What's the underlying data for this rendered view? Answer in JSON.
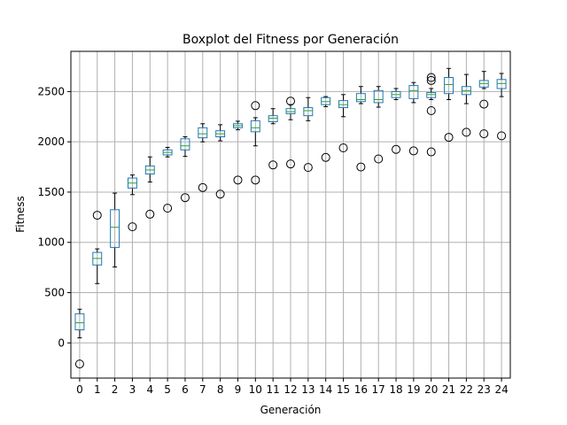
{
  "chart_data": {
    "type": "boxplot",
    "title": "Boxplot del Fitness por Generación",
    "xlabel": "Generación",
    "ylabel": "Fitness",
    "ylim": [
      -350,
      2900
    ],
    "yticks": [
      0,
      500,
      1000,
      1500,
      2000,
      2500
    ],
    "grid": true,
    "colors": {
      "box": "#1f77b4",
      "median": "#2ca02c",
      "whisker": "#000000",
      "grid": "#b0b0b0"
    },
    "categories": [
      "0",
      "1",
      "2",
      "3",
      "4",
      "5",
      "6",
      "7",
      "8",
      "9",
      "10",
      "11",
      "12",
      "13",
      "14",
      "15",
      "16",
      "17",
      "18",
      "19",
      "20",
      "21",
      "22",
      "23",
      "24"
    ],
    "boxes": [
      {
        "label": "0",
        "whislo": 50,
        "q1": 130,
        "med": 200,
        "q3": 290,
        "whishi": 335,
        "fliers": [
          -210
        ]
      },
      {
        "label": "1",
        "whislo": 590,
        "q1": 775,
        "med": 840,
        "q3": 900,
        "whishi": 935,
        "fliers": [
          1270
        ]
      },
      {
        "label": "2",
        "whislo": 755,
        "q1": 950,
        "med": 1150,
        "q3": 1325,
        "whishi": 1490,
        "fliers": []
      },
      {
        "label": "3",
        "whislo": 1475,
        "q1": 1540,
        "med": 1590,
        "q3": 1640,
        "whishi": 1670,
        "fliers": [
          1155
        ]
      },
      {
        "label": "4",
        "whislo": 1600,
        "q1": 1680,
        "med": 1720,
        "q3": 1760,
        "whishi": 1850,
        "fliers": [
          1280
        ]
      },
      {
        "label": "5",
        "whislo": 1850,
        "q1": 1870,
        "med": 1895,
        "q3": 1920,
        "whishi": 1945,
        "fliers": [
          1340
        ]
      },
      {
        "label": "6",
        "whislo": 1855,
        "q1": 1920,
        "med": 1960,
        "q3": 2030,
        "whishi": 2050,
        "fliers": [
          1445
        ]
      },
      {
        "label": "7",
        "whislo": 2000,
        "q1": 2040,
        "med": 2080,
        "q3": 2140,
        "whishi": 2180,
        "fliers": [
          1545
        ]
      },
      {
        "label": "8",
        "whislo": 2010,
        "q1": 2050,
        "med": 2080,
        "q3": 2110,
        "whishi": 2170,
        "fliers": [
          1480
        ]
      },
      {
        "label": "9",
        "whislo": 2120,
        "q1": 2140,
        "med": 2160,
        "q3": 2180,
        "whishi": 2205,
        "fliers": [
          1620
        ]
      },
      {
        "label": "10",
        "whislo": 1960,
        "q1": 2100,
        "med": 2140,
        "q3": 2210,
        "whishi": 2240,
        "fliers": [
          1620,
          2360
        ]
      },
      {
        "label": "11",
        "whislo": 2180,
        "q1": 2200,
        "med": 2235,
        "q3": 2260,
        "whishi": 2330,
        "fliers": [
          1770
        ]
      },
      {
        "label": "12",
        "whislo": 2220,
        "q1": 2280,
        "med": 2300,
        "q3": 2330,
        "whishi": 2370,
        "fliers": [
          1780,
          2405
        ]
      },
      {
        "label": "13",
        "whislo": 2210,
        "q1": 2260,
        "med": 2310,
        "q3": 2340,
        "whishi": 2440,
        "fliers": [
          1745
        ]
      },
      {
        "label": "14",
        "whislo": 2350,
        "q1": 2370,
        "med": 2400,
        "q3": 2440,
        "whishi": 2450,
        "fliers": [
          1845
        ]
      },
      {
        "label": "15",
        "whislo": 2250,
        "q1": 2340,
        "med": 2370,
        "q3": 2410,
        "whishi": 2470,
        "fliers": [
          1940
        ]
      },
      {
        "label": "16",
        "whislo": 2380,
        "q1": 2400,
        "med": 2420,
        "q3": 2480,
        "whishi": 2550,
        "fliers": [
          1750
        ]
      },
      {
        "label": "17",
        "whislo": 2345,
        "q1": 2390,
        "med": 2420,
        "q3": 2510,
        "whishi": 2550,
        "fliers": [
          1830
        ]
      },
      {
        "label": "18",
        "whislo": 2420,
        "q1": 2440,
        "med": 2470,
        "q3": 2500,
        "whishi": 2530,
        "fliers": [
          1925
        ]
      },
      {
        "label": "19",
        "whislo": 2390,
        "q1": 2430,
        "med": 2510,
        "q3": 2560,
        "whishi": 2590,
        "fliers": [
          1910
        ]
      },
      {
        "label": "20",
        "whislo": 2420,
        "q1": 2440,
        "med": 2470,
        "q3": 2490,
        "whishi": 2530,
        "fliers": [
          1900,
          2310,
          2610,
          2640
        ]
      },
      {
        "label": "21",
        "whislo": 2420,
        "q1": 2480,
        "med": 2570,
        "q3": 2640,
        "whishi": 2730,
        "fliers": [
          2045
        ]
      },
      {
        "label": "22",
        "whislo": 2380,
        "q1": 2470,
        "med": 2510,
        "q3": 2550,
        "whishi": 2670,
        "fliers": [
          2095
        ]
      },
      {
        "label": "23",
        "whislo": 2530,
        "q1": 2545,
        "med": 2580,
        "q3": 2610,
        "whishi": 2700,
        "fliers": [
          2080,
          2375
        ]
      },
      {
        "label": "24",
        "whislo": 2450,
        "q1": 2530,
        "med": 2580,
        "q3": 2620,
        "whishi": 2680,
        "fliers": [
          2060
        ]
      }
    ]
  }
}
